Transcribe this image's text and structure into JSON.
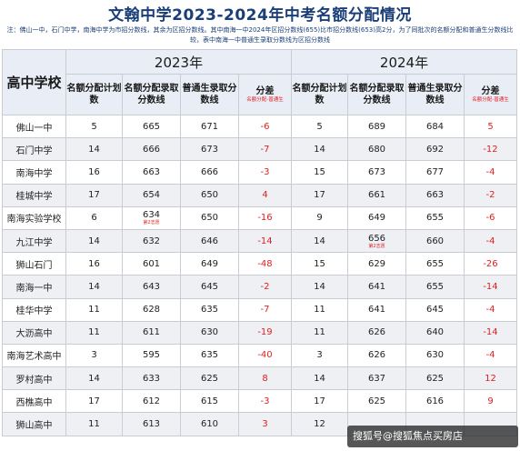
{
  "title": "文翰中学2023-2024年中考名额分配情况",
  "note": "注：佛山一中，石门中学，南海中学为市招分数线，其余为区招分数线。其中南海一中2024年区招分数线(655)比市招分数线(653)高2分，为了同批次的名额分配和普通生分数线比较，表中南海一中普通生录取分数线为区招分数线",
  "header": {
    "school": "高中学校",
    "year_2023": "2023年",
    "year_2024": "2024年",
    "col_quota": "名额分配计划数",
    "col_quota_score": "名额分配录取分数线",
    "col_general_score": "普通生录取分数线",
    "col_diff": "分差",
    "col_diff_sub": "名额分配-普通生"
  },
  "rows": [
    {
      "school": "佛山一中",
      "q23": "5",
      "qs23": "665",
      "qs23_note": "",
      "gs23": "671",
      "d23": "-6",
      "q24": "5",
      "qs24": "689",
      "qs24_note": "",
      "gs24": "684",
      "d24": "5"
    },
    {
      "school": "石门中学",
      "q23": "14",
      "qs23": "666",
      "qs23_note": "",
      "gs23": "673",
      "d23": "-7",
      "q24": "14",
      "qs24": "680",
      "qs24_note": "",
      "gs24": "692",
      "d24": "-12"
    },
    {
      "school": "南海中学",
      "q23": "16",
      "qs23": "663",
      "qs23_note": "",
      "gs23": "666",
      "d23": "-3",
      "q24": "15",
      "qs24": "673",
      "qs24_note": "",
      "gs24": "677",
      "d24": "-4"
    },
    {
      "school": "桂城中学",
      "q23": "17",
      "qs23": "654",
      "qs23_note": "",
      "gs23": "650",
      "d23": "4",
      "q24": "17",
      "qs24": "661",
      "qs24_note": "",
      "gs24": "663",
      "d24": "-2"
    },
    {
      "school": "南海实验学校",
      "q23": "6",
      "qs23": "634",
      "qs23_note": "第2志愿",
      "gs23": "650",
      "d23": "-16",
      "q24": "9",
      "qs24": "649",
      "qs24_note": "",
      "gs24": "655",
      "d24": "-6"
    },
    {
      "school": "九江中学",
      "q23": "14",
      "qs23": "632",
      "qs23_note": "",
      "gs23": "646",
      "d23": "-14",
      "q24": "14",
      "qs24": "656",
      "qs24_note": "第2志愿",
      "gs24": "660",
      "d24": "-4"
    },
    {
      "school": "狮山石门",
      "q23": "16",
      "qs23": "601",
      "qs23_note": "",
      "gs23": "649",
      "d23": "-48",
      "q24": "15",
      "qs24": "629",
      "qs24_note": "",
      "gs24": "655",
      "d24": "-26"
    },
    {
      "school": "南海一中",
      "q23": "14",
      "qs23": "643",
      "qs23_note": "",
      "gs23": "645",
      "d23": "-2",
      "q24": "14",
      "qs24": "641",
      "qs24_note": "",
      "gs24": "655",
      "d24": "-14"
    },
    {
      "school": "桂华中学",
      "q23": "11",
      "qs23": "628",
      "qs23_note": "",
      "gs23": "635",
      "d23": "-7",
      "q24": "11",
      "qs24": "641",
      "qs24_note": "",
      "gs24": "645",
      "d24": "-4"
    },
    {
      "school": "大沥高中",
      "q23": "11",
      "qs23": "611",
      "qs23_note": "",
      "gs23": "630",
      "d23": "-19",
      "q24": "11",
      "qs24": "626",
      "qs24_note": "",
      "gs24": "640",
      "d24": "-14"
    },
    {
      "school": "南海艺术高中",
      "q23": "3",
      "qs23": "595",
      "qs23_note": "",
      "gs23": "635",
      "d23": "-40",
      "q24": "3",
      "qs24": "626",
      "qs24_note": "",
      "gs24": "630",
      "d24": "-4"
    },
    {
      "school": "罗村高中",
      "q23": "14",
      "qs23": "633",
      "qs23_note": "",
      "gs23": "625",
      "d23": "8",
      "q24": "14",
      "qs24": "637",
      "qs24_note": "",
      "gs24": "625",
      "d24": "12"
    },
    {
      "school": "西樵高中",
      "q23": "17",
      "qs23": "612",
      "qs23_note": "",
      "gs23": "615",
      "d23": "-3",
      "q24": "17",
      "qs24": "625",
      "qs24_note": "",
      "gs24": "616",
      "d24": "9"
    },
    {
      "school": "狮山高中",
      "q23": "11",
      "qs23": "613",
      "qs23_note": "",
      "gs23": "610",
      "d23": "3",
      "q24": "12",
      "qs24": "",
      "qs24_note": "",
      "gs24": "",
      "d24": ""
    }
  ],
  "watermark": "搜狐号@搜狐焦点买房店"
}
